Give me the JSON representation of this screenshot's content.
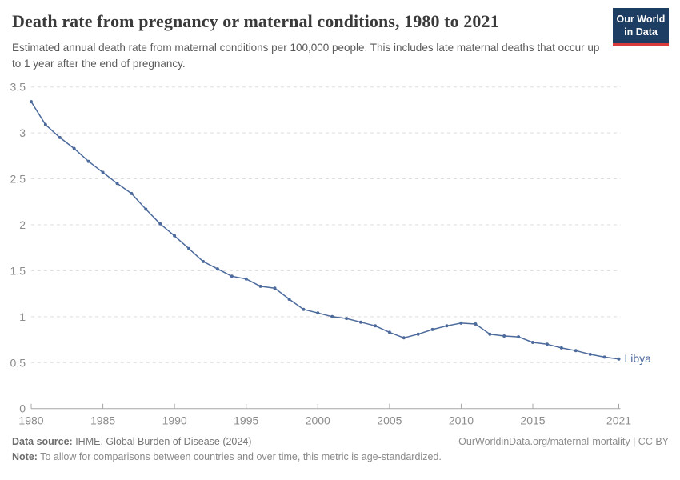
{
  "header": {
    "title": "Death rate from pregnancy or maternal conditions, 1980 to 2021",
    "subtitle": "Estimated annual death rate from maternal conditions per 100,000 people. This includes late maternal deaths that occur up to 1 year after the end of pregnancy.",
    "logo": {
      "line1": "Our World",
      "line2": "in Data",
      "bg_color": "#1d3d63",
      "accent_color": "#d93a3a"
    }
  },
  "chart_data": {
    "type": "line",
    "title": "Death rate from pregnancy or maternal conditions, 1980 to 2021",
    "ylabel": "Estimated annual death rate from maternal conditions per 100,000 people",
    "xlabel": "",
    "grid": "horizontal-dashed",
    "legend_position": "end-of-line-label",
    "ylim": [
      0,
      3.5
    ],
    "yticks": [
      0,
      0.5,
      1,
      1.5,
      2,
      2.5,
      3,
      3.5
    ],
    "xticks": [
      1980,
      1985,
      1990,
      1995,
      2000,
      2005,
      2010,
      2015,
      2021
    ],
    "x": [
      1980,
      1981,
      1982,
      1983,
      1984,
      1985,
      1986,
      1987,
      1988,
      1989,
      1990,
      1991,
      1992,
      1993,
      1994,
      1995,
      1996,
      1997,
      1998,
      1999,
      2000,
      2001,
      2002,
      2003,
      2004,
      2005,
      2006,
      2007,
      2008,
      2009,
      2010,
      2011,
      2012,
      2013,
      2014,
      2015,
      2016,
      2017,
      2018,
      2019,
      2020,
      2021
    ],
    "series": [
      {
        "name": "Libya",
        "color": "#4c6a9c",
        "values": [
          3.34,
          3.09,
          2.95,
          2.83,
          2.69,
          2.57,
          2.45,
          2.34,
          2.17,
          2.01,
          1.88,
          1.74,
          1.6,
          1.52,
          1.44,
          1.41,
          1.33,
          1.31,
          1.19,
          1.08,
          1.04,
          1.0,
          0.98,
          0.94,
          0.9,
          0.83,
          0.77,
          0.81,
          0.86,
          0.9,
          0.93,
          0.92,
          0.81,
          0.79,
          0.78,
          0.72,
          0.7,
          0.66,
          0.63,
          0.59,
          0.56,
          0.54
        ]
      }
    ],
    "colors": {
      "gridline": "#dddddd",
      "axis": "#a8a8a8",
      "tick_text": "#8c8c8c"
    }
  },
  "footer": {
    "datasource_label": "Data source:",
    "datasource_value": " IHME, Global Burden of Disease (2024)",
    "credit": "OurWorldinData.org/maternal-mortality | CC BY",
    "note_label": "Note:",
    "note_value": " To allow for comparisons between countries and over time, this metric is age-standardized."
  }
}
